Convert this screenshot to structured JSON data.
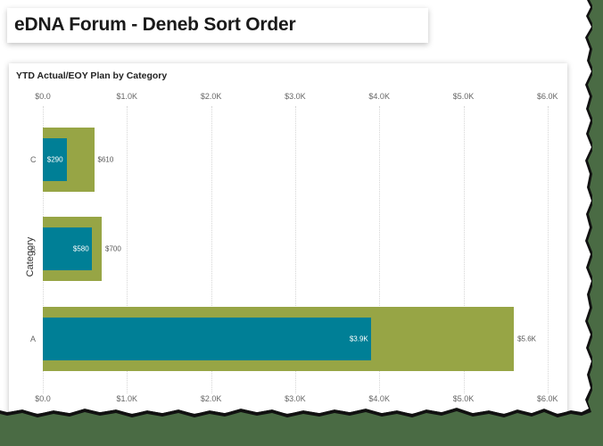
{
  "page": {
    "title": "eDNA Forum - Deneb Sort Order"
  },
  "chart": {
    "title": "YTD Actual/EOY Plan by Category",
    "ylabel": "Category",
    "ticks": [
      "$0.0",
      "$1.0K",
      "$2.0K",
      "$3.0K",
      "$4.0K",
      "$5.0K",
      "$6.0K"
    ],
    "colors": {
      "plan": "#97a545",
      "actual": "#007f96"
    },
    "rows": [
      {
        "category": "C",
        "actual": 290,
        "plan": 610,
        "actual_label": "$290",
        "plan_label": "$610"
      },
      {
        "category": "B",
        "actual": 580,
        "plan": 700,
        "actual_label": "$580",
        "plan_label": "$700"
      },
      {
        "category": "A",
        "actual": 3900,
        "plan": 5600,
        "actual_label": "$3.9K",
        "plan_label": "$5.6K"
      }
    ]
  },
  "chart_data": {
    "type": "bar",
    "orientation": "horizontal",
    "title": "YTD Actual/EOY Plan by Category",
    "xlabel": "",
    "ylabel": "Category",
    "categories": [
      "C",
      "B",
      "A"
    ],
    "series": [
      {
        "name": "EOY Plan",
        "values": [
          610,
          700,
          5600
        ],
        "labels": [
          "$610",
          "$700",
          "$5.6K"
        ],
        "color": "#97a545"
      },
      {
        "name": "YTD Actual",
        "values": [
          290,
          580,
          3900
        ],
        "labels": [
          "$290",
          "$580",
          "$3.9K"
        ],
        "color": "#007f96"
      }
    ],
    "xlim": [
      0,
      6000
    ],
    "x_ticks": [
      "$0.0",
      "$1.0K",
      "$2.0K",
      "$3.0K",
      "$4.0K",
      "$5.0K",
      "$6.0K"
    ],
    "x_axis_position": "top and bottom",
    "grid": "vertical dotted",
    "legend": "none"
  }
}
